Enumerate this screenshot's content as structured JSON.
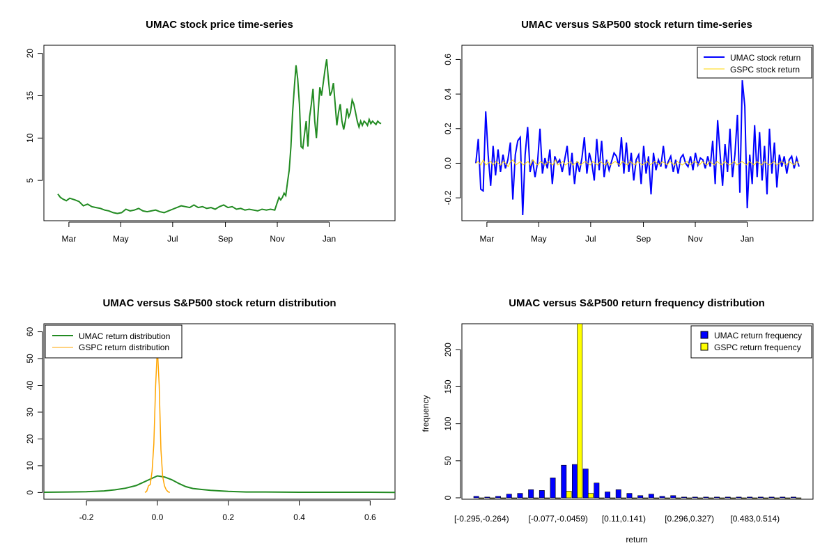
{
  "chart_data": [
    {
      "type": "line",
      "title": "UMAC stock price time-series",
      "xlabel": "",
      "ylabel": "",
      "x_ticks": [
        "Mar",
        "May",
        "Jul",
        "Sep",
        "Nov",
        "Jan"
      ],
      "y_ticks": [
        5,
        10,
        15,
        20
      ],
      "ylim": [
        0.9,
        20.3
      ],
      "grid": false,
      "colors": {
        "UMAC": "#228B22"
      },
      "series": [
        {
          "x_day": [
            0,
            3,
            6,
            10,
            14,
            20,
            25,
            30,
            35,
            40,
            45,
            50,
            55,
            60,
            65,
            70,
            75,
            80,
            85,
            90,
            95,
            100,
            105,
            110,
            115,
            120,
            125,
            130,
            135,
            140,
            145,
            150,
            155,
            160,
            165,
            170,
            175,
            180,
            185,
            190,
            195,
            200,
            205,
            210,
            215,
            220,
            225,
            230,
            235,
            240,
            245,
            250,
            255,
            258,
            260,
            262,
            264,
            266,
            268,
            270,
            272,
            274,
            276,
            278,
            280,
            282,
            284,
            286,
            288,
            290,
            292,
            294,
            296,
            298,
            300,
            302,
            304,
            306,
            308,
            310,
            312,
            314,
            316,
            318,
            320,
            322,
            324,
            326,
            328,
            330,
            332,
            334,
            336,
            338,
            340,
            342,
            344,
            346,
            348,
            350,
            352,
            354,
            356,
            358,
            360,
            362,
            364,
            366,
            368,
            370,
            372,
            374,
            376,
            378,
            380
          ],
          "values": [
            3.4,
            3.0,
            2.8,
            2.6,
            2.9,
            2.7,
            2.5,
            2.0,
            2.2,
            1.9,
            1.8,
            1.7,
            1.5,
            1.4,
            1.2,
            1.1,
            1.2,
            1.6,
            1.4,
            1.5,
            1.7,
            1.4,
            1.3,
            1.4,
            1.5,
            1.3,
            1.2,
            1.4,
            1.6,
            1.8,
            2.0,
            1.9,
            1.8,
            2.1,
            1.8,
            1.9,
            1.7,
            1.8,
            1.6,
            1.9,
            2.1,
            1.8,
            1.9,
            1.6,
            1.7,
            1.5,
            1.6,
            1.5,
            1.4,
            1.6,
            1.5,
            1.6,
            1.5,
            2.4,
            3.0,
            2.7,
            3.0,
            3.5,
            3.2,
            4.8,
            6.2,
            9.0,
            13.0,
            16.0,
            18.6,
            17.0,
            14.0,
            9.0,
            8.8,
            10.5,
            12.0,
            9.0,
            12.5,
            14.0,
            15.8,
            12.0,
            10.0,
            13.0,
            16.0,
            15.0,
            16.5,
            18.0,
            19.3,
            17.0,
            15.0,
            15.5,
            16.5,
            14.0,
            11.5,
            13.0,
            14.0,
            12.0,
            11.0,
            12.0,
            13.5,
            12.5,
            13.0,
            14.5,
            14.0,
            13.0,
            12.0,
            11.3,
            12.0,
            11.5,
            12.0,
            11.8,
            11.5,
            12.2,
            11.7,
            12.0,
            11.8,
            11.6,
            12.0,
            11.8,
            11.7
          ]
        }
      ]
    },
    {
      "type": "line",
      "title": "UMAC versus S&P500 stock return time-series",
      "xlabel": "",
      "ylabel": "",
      "x_ticks": [
        "Mar",
        "May",
        "Jul",
        "Sep",
        "Nov",
        "Jan"
      ],
      "y_ticks": [
        "-0.2",
        "0.0",
        "0.2",
        "0.4",
        "0.6"
      ],
      "y_tick_values": [
        -0.2,
        0.0,
        0.2,
        0.4,
        0.6
      ],
      "ylim": [
        -0.3,
        0.65
      ],
      "grid": false,
      "legend_position": "top-right",
      "series": [
        {
          "name": "UMAC stock return",
          "color": "#0000FF",
          "values": [
            0.0,
            0.14,
            -0.15,
            -0.16,
            0.3,
            0.05,
            -0.13,
            0.1,
            -0.07,
            0.08,
            -0.05,
            0.05,
            -0.03,
            0.02,
            0.12,
            -0.21,
            0.05,
            0.13,
            0.15,
            -0.3,
            0.05,
            0.21,
            -0.05,
            0.02,
            -0.08,
            0.0,
            0.2,
            -0.06,
            0.03,
            -0.03,
            0.08,
            -0.12,
            0.04,
            0.0,
            0.02,
            -0.05,
            0.02,
            0.1,
            -0.07,
            0.06,
            -0.12,
            0.01,
            -0.05,
            0.03,
            0.15,
            -0.06,
            0.06,
            0.0,
            -0.1,
            0.14,
            -0.04,
            0.13,
            -0.08,
            0.02,
            -0.04,
            0.01,
            0.06,
            0.04,
            -0.02,
            0.15,
            -0.06,
            0.12,
            -0.05,
            0.06,
            -0.1,
            0.02,
            0.05,
            -0.12,
            0.1,
            -0.06,
            0.04,
            -0.18,
            0.06,
            -0.04,
            0.02,
            -0.02,
            0.1,
            -0.03,
            0.01,
            0.04,
            -0.05,
            0.02,
            -0.06,
            0.03,
            0.05,
            0.0,
            -0.02,
            0.04,
            -0.04,
            0.06,
            -0.01,
            0.03,
            0.02,
            -0.03,
            0.04,
            -0.02,
            0.13,
            -0.12,
            0.25,
            0.05,
            -0.13,
            0.11,
            -0.05,
            0.2,
            -0.08,
            0.05,
            0.28,
            -0.17,
            0.48,
            0.33,
            -0.26,
            0.05,
            -0.12,
            0.22,
            -0.08,
            0.18,
            -0.1,
            0.1,
            -0.18,
            0.2,
            -0.06,
            0.12,
            -0.14,
            0.05,
            -0.02,
            0.04,
            -0.06,
            0.02,
            0.04,
            -0.03,
            0.03,
            -0.02
          ]
        },
        {
          "name": "GSPC stock return",
          "color": "#FFD700",
          "values": [
            0.0,
            0.01,
            -0.01,
            0.02,
            -0.01,
            0.0,
            0.01,
            -0.01,
            0.01,
            0.0,
            -0.01,
            0.01,
            0.0,
            -0.02,
            0.01,
            0.02,
            -0.01,
            0.0,
            0.01,
            -0.01,
            0.0,
            0.01,
            -0.01,
            0.02,
            0.0,
            -0.01,
            0.01,
            0.0,
            -0.01,
            0.01,
            0.0,
            -0.01,
            0.02,
            -0.01,
            0.0,
            0.01,
            -0.01,
            0.0,
            0.01,
            -0.01,
            0.0,
            0.01,
            -0.01,
            0.0,
            0.01,
            0.0,
            -0.01,
            0.01,
            0.0,
            -0.01,
            0.01,
            0.0,
            -0.01,
            0.01,
            -0.01,
            0.0,
            0.01,
            0.0,
            -0.01,
            0.01,
            0.0,
            -0.01,
            0.01,
            0.0,
            -0.01,
            0.01,
            0.0,
            -0.01,
            0.0,
            0.01,
            -0.01,
            0.0,
            0.01,
            0.0,
            -0.01,
            0.01,
            0.0,
            -0.01,
            0.01,
            0.0,
            -0.01,
            0.01,
            0.0,
            -0.01,
            0.0,
            0.01,
            -0.01,
            0.0,
            0.01,
            0.0,
            -0.01,
            0.01,
            0.0,
            -0.01,
            0.01,
            0.0,
            -0.01,
            0.01,
            0.0,
            -0.01,
            0.01,
            0.0,
            -0.01,
            0.0,
            0.01,
            -0.01,
            0.0,
            0.01,
            0.0,
            -0.01,
            0.01,
            0.0,
            -0.01,
            0.01,
            0.0,
            -0.01,
            0.01,
            0.0,
            -0.01,
            0.0,
            0.01,
            -0.01,
            0.0,
            0.01,
            0.0,
            -0.01,
            0.01,
            0.0,
            -0.01,
            0.01,
            0.0
          ]
        }
      ]
    },
    {
      "type": "line",
      "title": "UMAC versus S&P500 stock return distribution",
      "xlabel": "",
      "ylabel": "",
      "x_ticks": [
        "-0.2",
        "0.0",
        "0.2",
        "0.4",
        "0.6"
      ],
      "x_tick_values": [
        -0.2,
        0.0,
        0.2,
        0.4,
        0.6
      ],
      "y_ticks": [
        "0",
        "10",
        "20",
        "30",
        "40",
        "50",
        "60"
      ],
      "y_tick_values": [
        0,
        10,
        20,
        30,
        40,
        50,
        60
      ],
      "xlim": [
        -0.32,
        0.67
      ],
      "ylim": [
        -2.5,
        63
      ],
      "legend_position": "top-left",
      "series": [
        {
          "name": "UMAC return distribution",
          "color": "#228B22",
          "x": [
            -0.32,
            -0.25,
            -0.2,
            -0.15,
            -0.12,
            -0.09,
            -0.06,
            -0.04,
            -0.02,
            0.0,
            0.02,
            0.04,
            0.06,
            0.08,
            0.1,
            0.12,
            0.15,
            0.2,
            0.25,
            0.3,
            0.4,
            0.5,
            0.6,
            0.67
          ],
          "values": [
            0.1,
            0.2,
            0.3,
            0.6,
            1.0,
            1.6,
            2.6,
            3.8,
            5.0,
            6.2,
            5.8,
            4.8,
            3.4,
            2.2,
            1.5,
            1.2,
            0.8,
            0.4,
            0.2,
            0.2,
            0.1,
            0.1,
            0.1,
            0.05
          ]
        },
        {
          "name": "GSPC return distribution",
          "color": "#FFA500",
          "x": [
            -0.035,
            -0.03,
            -0.025,
            -0.02,
            -0.015,
            -0.01,
            -0.005,
            0.0,
            0.005,
            0.01,
            0.015,
            0.02,
            0.025,
            0.03,
            0.035
          ],
          "values": [
            0.0,
            0.5,
            2.5,
            3.0,
            8.0,
            18.0,
            40.0,
            54.0,
            40.0,
            16.0,
            6.0,
            2.5,
            1.0,
            0.3,
            0.0
          ]
        }
      ]
    },
    {
      "type": "bar",
      "title": "UMAC versus S&P500 return frequency distribution",
      "xlabel": "return",
      "ylabel": "frequency",
      "y_ticks": [
        "0",
        "50",
        "100",
        "150",
        "200"
      ],
      "y_tick_values": [
        0,
        50,
        100,
        150,
        200
      ],
      "ylim": [
        0,
        235
      ],
      "legend_position": "top-right",
      "category_labels_shown": [
        "[-0.295,-0.264)",
        "[-0.077,-0.0459)",
        "[0.11,0.141)",
        "[0.296,0.327)",
        "[0.483,0.514)"
      ],
      "category_label_indices": [
        0,
        7,
        13,
        19,
        25
      ],
      "bin_count": 30,
      "series": [
        {
          "name": "UMAC return frequency",
          "color": "#0000FF",
          "values": [
            2,
            1,
            2,
            5,
            6,
            11,
            10,
            27,
            44,
            45,
            39,
            20,
            8,
            11,
            6,
            3,
            5,
            2,
            3,
            1,
            1,
            1,
            1,
            1,
            1,
            1,
            1,
            1,
            1,
            1
          ]
        },
        {
          "name": "GSPC return frequency",
          "color": "#FFFF00",
          "values": [
            0,
            0,
            0,
            0,
            0,
            0,
            0,
            0,
            9,
            235,
            6,
            0,
            0,
            0,
            0,
            0,
            0,
            0,
            0,
            0,
            0,
            0,
            0,
            0,
            0,
            0,
            0,
            0,
            0,
            0
          ]
        }
      ]
    }
  ]
}
